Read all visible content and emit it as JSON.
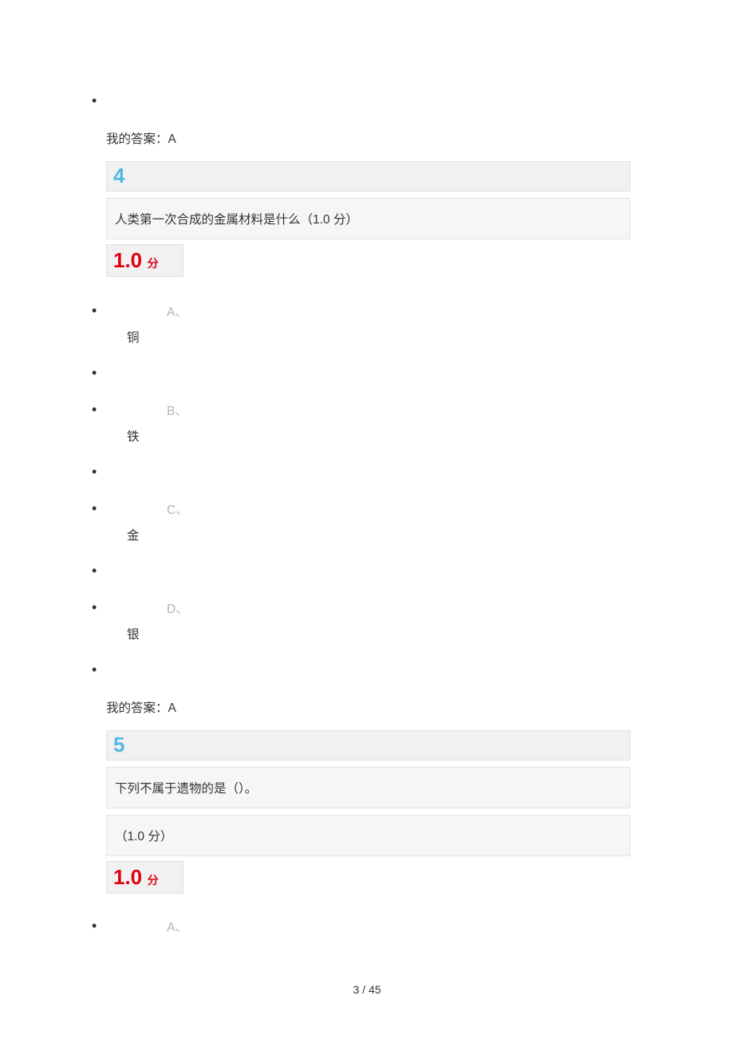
{
  "page": {
    "footer": "3  / 45"
  },
  "colors": {
    "question_number": "#51b7e8",
    "score": "#df0012",
    "option_letter": "#b3b3b3",
    "text": "#333333",
    "box_bg_dark": "#f1f1f1",
    "box_bg_light": "#f6f6f6",
    "box_border": "#e0e0e0"
  },
  "prev_answer": {
    "label": "我的答案：A"
  },
  "q4": {
    "number": "4",
    "text": "人类第一次合成的金属材料是什么（1.0 分）",
    "score_value": "1.0",
    "score_unit": "分",
    "options": {
      "a_letter": "A、",
      "a_text": "铜",
      "b_letter": "B、",
      "b_text": "铁",
      "c_letter": "C、",
      "c_text": "金",
      "d_letter": "D、",
      "d_text": "银"
    },
    "answer_label": "我的答案：A"
  },
  "q5": {
    "number": "5",
    "text_line1": "下列不属于遗物的是（）。",
    "text_line2": "（1.0 分）",
    "score_value": "1.0",
    "score_unit": "分",
    "options": {
      "a_letter": "A、"
    }
  }
}
